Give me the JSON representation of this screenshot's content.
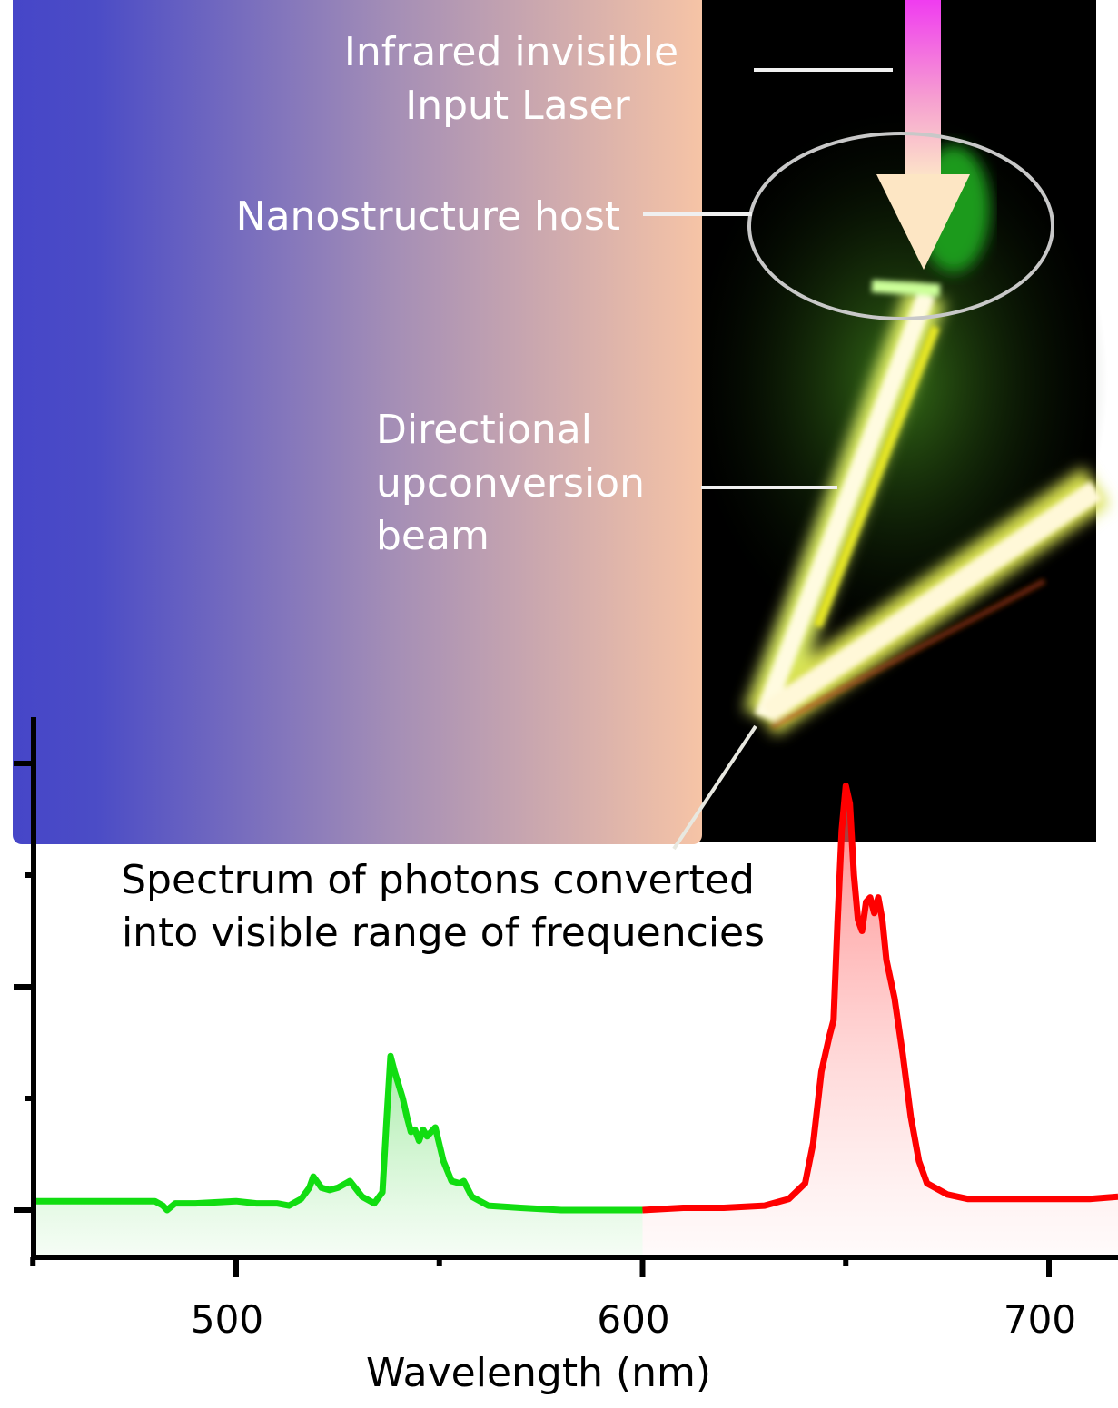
{
  "annotations": {
    "input_laser": [
      "Infrared invisible",
      "Input Laser"
    ],
    "host": "Nanostructure host",
    "beam": [
      "Directional",
      "upconversion",
      "beam"
    ],
    "spectrum": [
      "Spectrum of photons converted",
      "into visible range of frequencies"
    ]
  },
  "colors": {
    "panel_gradient_start": "#4646c8",
    "panel_gradient_end": "#f6c4a6",
    "laser_arrow_top": "#f03cf0",
    "laser_arrow_bottom": "#fde8c8",
    "green_series": "#11dd11",
    "red_series": "#ff0000"
  },
  "chart_data": {
    "type": "line",
    "title": "",
    "xlabel": "Wavelength (nm)",
    "ylabel": "",
    "xlim": [
      450,
      717
    ],
    "ylim": [
      -0.22,
      2.2
    ],
    "x_ticks": [
      500,
      600,
      700
    ],
    "x_tick_labels": [
      "500",
      "600",
      "700"
    ],
    "y_ticks": [
      0,
      0.5,
      1,
      1.5,
      2
    ],
    "y_tick_labels_shown": false,
    "grid": false,
    "series": [
      {
        "color": "#11dd11",
        "fill": "area-gradient",
        "x": [
          450,
          470,
          480,
          482,
          483,
          485,
          490,
          500,
          505,
          510,
          513,
          516,
          518,
          519,
          521,
          523,
          525,
          528,
          531,
          534,
          536,
          537,
          538,
          539,
          540,
          541,
          542,
          543,
          544,
          545,
          546,
          547,
          548,
          549,
          551,
          553,
          555,
          556,
          558,
          562,
          570,
          580,
          590,
          600
        ],
        "y": [
          0.04,
          0.04,
          0.04,
          0.02,
          0.0,
          0.03,
          0.03,
          0.04,
          0.03,
          0.03,
          0.02,
          0.05,
          0.1,
          0.15,
          0.1,
          0.09,
          0.1,
          0.13,
          0.06,
          0.03,
          0.08,
          0.4,
          0.69,
          0.62,
          0.56,
          0.5,
          0.42,
          0.35,
          0.36,
          0.31,
          0.36,
          0.33,
          0.35,
          0.37,
          0.22,
          0.13,
          0.12,
          0.13,
          0.06,
          0.02,
          0.01,
          0.0,
          0.0,
          0.0
        ]
      },
      {
        "color": "#ff0000",
        "fill": "area-gradient",
        "x": [
          600,
          610,
          620,
          630,
          636,
          640,
          642,
          644,
          646,
          647,
          648,
          649,
          650,
          651,
          652,
          653,
          654,
          655,
          656,
          657,
          658,
          659,
          660,
          662,
          664,
          666,
          668,
          670,
          675,
          680,
          690,
          700,
          710,
          717
        ],
        "y": [
          0.0,
          0.01,
          0.01,
          0.02,
          0.05,
          0.12,
          0.3,
          0.62,
          0.78,
          0.85,
          1.3,
          1.7,
          1.9,
          1.82,
          1.5,
          1.3,
          1.25,
          1.38,
          1.4,
          1.33,
          1.4,
          1.3,
          1.12,
          0.95,
          0.7,
          0.42,
          0.22,
          0.12,
          0.07,
          0.05,
          0.05,
          0.05,
          0.05,
          0.06
        ]
      }
    ]
  }
}
